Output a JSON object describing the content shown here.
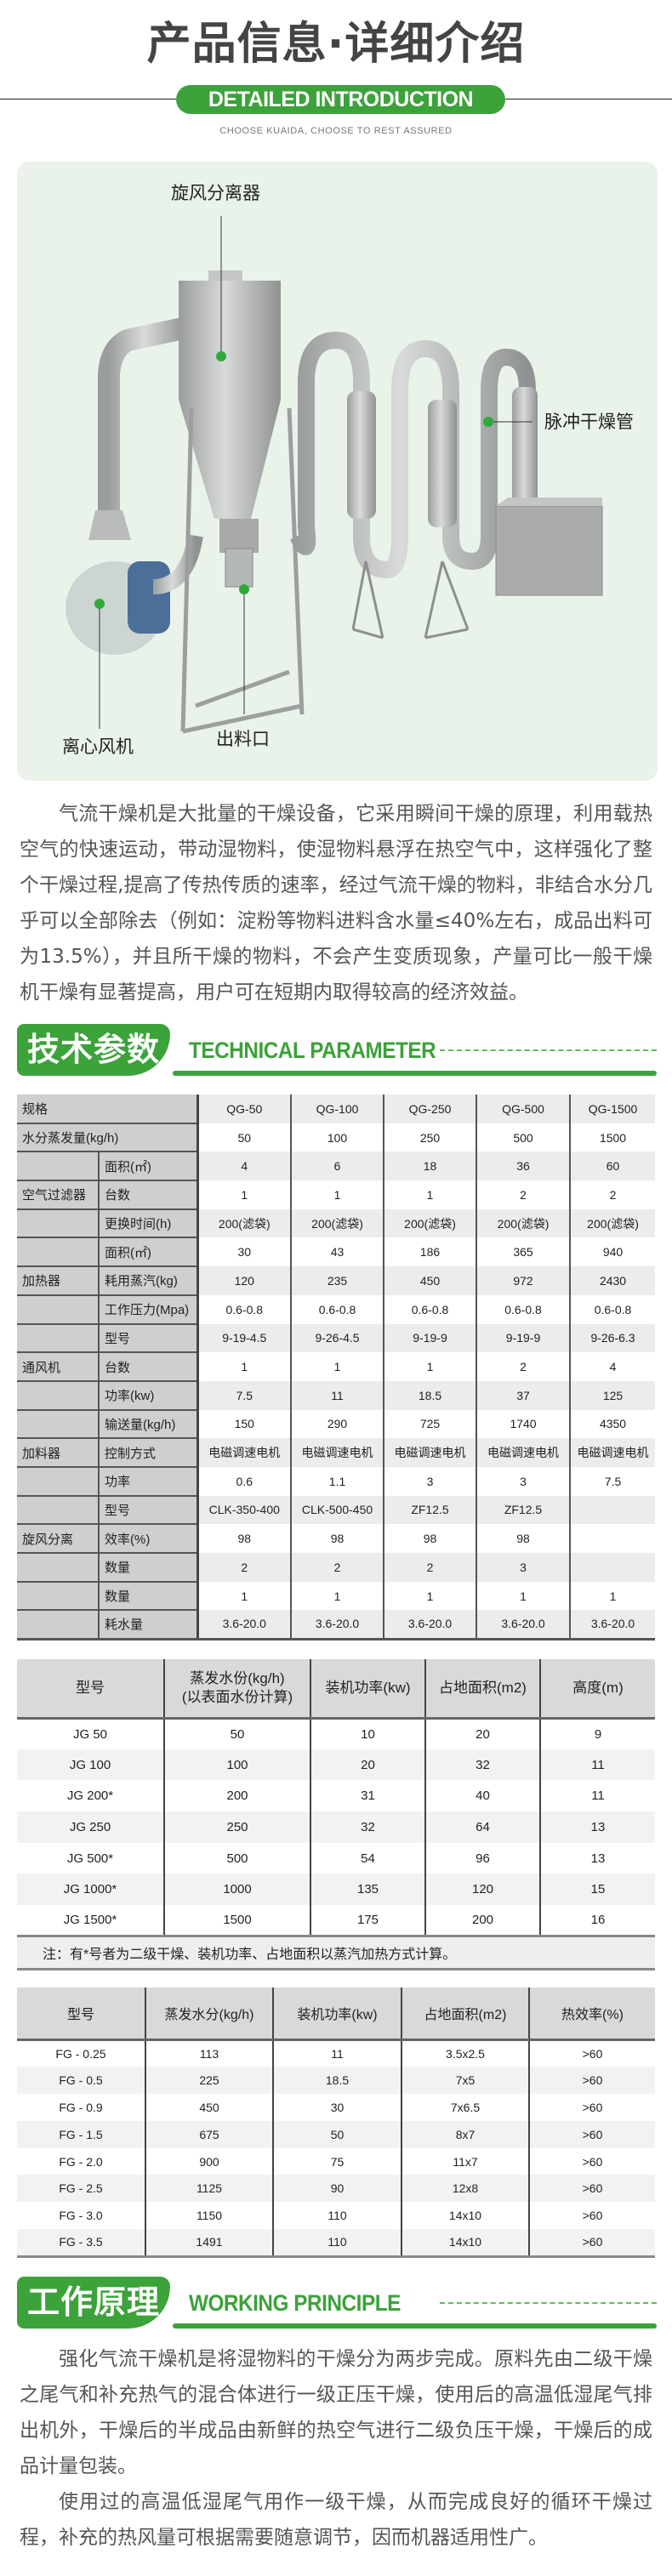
{
  "header": {
    "title": "产品信息·详细介绍",
    "badge": "DETAILED INTRODUCTION",
    "subtitle": "CHOOSE KUAIDA, CHOOSE TO REST ASSURED",
    "accent_color": "#3ca23a"
  },
  "product_image": {
    "callouts": {
      "cyclone": "旋风分离器",
      "pulse_tube": "脉冲干燥管",
      "fan": "离心风机",
      "outlet": "出料口"
    }
  },
  "intro": {
    "paragraph": "气流干燥机是大批量的干燥设备，它采用瞬间干燥的原理，利用载热空气的快速运动，带动湿物料，使湿物料悬浮在热空气中，这样强化了整个干燥过程,提高了传热传质的速率，经过气流干燥的物料，非结合水分几乎可以全部除去（例如：淀粉等物料进料含水量≤40%左右，成品出料可为13.5%），并且所干燥的物料，不会产生变质现象，产量可比一般干燥机干燥有显著提高，用户可在短期内取得较高的经济效益。"
  },
  "tech_section": {
    "title_cn": "技术参数",
    "title_en": "TECHNICAL PARAMETER"
  },
  "table_qg": {
    "header": {
      "label": "规格",
      "models": [
        "QG-50",
        "QG-100",
        "QG-250",
        "QG-500",
        "QG-1500"
      ]
    },
    "rows": [
      {
        "group": "",
        "label": "水分蒸发量(kg/h)",
        "span": true,
        "values": [
          "50",
          "100",
          "250",
          "500",
          "1500"
        ]
      },
      {
        "group": "",
        "label": "面积(㎡)",
        "values": [
          "4",
          "6",
          "18",
          "36",
          "60"
        ]
      },
      {
        "group": "空气过滤器",
        "label": "台数",
        "values": [
          "1",
          "1",
          "1",
          "2",
          "2"
        ]
      },
      {
        "group": "",
        "label": "更换时间(h)",
        "values": [
          "200(滤袋)",
          "200(滤袋)",
          "200(滤袋)",
          "200(滤袋)",
          "200(滤袋)"
        ]
      },
      {
        "group": "",
        "label": "面积(㎡)",
        "values": [
          "30",
          "43",
          "186",
          "365",
          "940"
        ]
      },
      {
        "group": "加热器",
        "label": "耗用蒸汽(kg)",
        "values": [
          "120",
          "235",
          "450",
          "972",
          "2430"
        ]
      },
      {
        "group": "",
        "label": "工作压力(Mpa)",
        "values": [
          "0.6-0.8",
          "0.6-0.8",
          "0.6-0.8",
          "0.6-0.8",
          "0.6-0.8"
        ]
      },
      {
        "group": "",
        "label": "型号",
        "values": [
          "9-19-4.5",
          "9-26-4.5",
          "9-19-9",
          "9-19-9",
          "9-26-6.3"
        ]
      },
      {
        "group": "通风机",
        "label": "台数",
        "values": [
          "1",
          "1",
          "1",
          "2",
          "4"
        ]
      },
      {
        "group": "",
        "label": "功率(kw)",
        "values": [
          "7.5",
          "11",
          "18.5",
          "37",
          "125"
        ]
      },
      {
        "group": "",
        "label": "输送量(kg/h)",
        "values": [
          "150",
          "290",
          "725",
          "1740",
          "4350"
        ]
      },
      {
        "group": "加料器",
        "label": "控制方式",
        "values": [
          "电磁调速电机",
          "电磁调速电机",
          "电磁调速电机",
          "电磁调速电机",
          "电磁调速电机"
        ]
      },
      {
        "group": "",
        "label": "功率",
        "values": [
          "0.6",
          "1.1",
          "3",
          "3",
          "7.5"
        ]
      },
      {
        "group": "",
        "label": "型号",
        "values": [
          "CLK-350-400",
          "CLK-500-450",
          "ZF12.5",
          "ZF12.5",
          ""
        ]
      },
      {
        "group": "旋风分离",
        "label": "效率(%)",
        "values": [
          "98",
          "98",
          "98",
          "98",
          ""
        ]
      },
      {
        "group": "",
        "label": "数量",
        "values": [
          "2",
          "2",
          "2",
          "3",
          ""
        ]
      },
      {
        "group": "",
        "label": "数量",
        "values": [
          "1",
          "1",
          "1",
          "1",
          "1"
        ]
      },
      {
        "group": "",
        "label": "耗水量",
        "values": [
          "3.6-20.0",
          "3.6-20.0",
          "3.6-20.0",
          "3.6-20.0",
          "3.6-20.0"
        ]
      }
    ]
  },
  "table_jg": {
    "columns": [
      "型号",
      "蒸发水份(kg/h)\n(以表面水份计算)",
      "装机功率(kw)",
      "占地面积(m2)",
      "高度(m)"
    ],
    "rows": [
      [
        "JG 50",
        "50",
        "10",
        "20",
        "9"
      ],
      [
        "JG 100",
        "100",
        "20",
        "32",
        "11"
      ],
      [
        "JG 200*",
        "200",
        "31",
        "40",
        "11"
      ],
      [
        "JG 250",
        "250",
        "32",
        "64",
        "13"
      ],
      [
        "JG 500*",
        "500",
        "54",
        "96",
        "13"
      ],
      [
        "JG 1000*",
        "1000",
        "135",
        "120",
        "15"
      ],
      [
        "JG 1500*",
        "1500",
        "175",
        "200",
        "16"
      ]
    ],
    "note": "注：有*号者为二级干燥、装机功率、占地面积以蒸汽加热方式计算。"
  },
  "table_fg": {
    "columns": [
      "型号",
      "蒸发水分(kg/h)",
      "装机功率(kw)",
      "占地面积(m2)",
      "热效率(%)"
    ],
    "rows": [
      [
        "FG - 0.25",
        "113",
        "11",
        "3.5x2.5",
        ">60"
      ],
      [
        "FG - 0.5",
        "225",
        "18.5",
        "7x5",
        ">60"
      ],
      [
        "FG - 0.9",
        "450",
        "30",
        "7x6.5",
        ">60"
      ],
      [
        "FG - 1.5",
        "675",
        "50",
        "8x7",
        ">60"
      ],
      [
        "FG - 2.0",
        "900",
        "75",
        "11x7",
        ">60"
      ],
      [
        "FG - 2.5",
        "1125",
        "90",
        "12x8",
        ">60"
      ],
      [
        "FG - 3.0",
        "1150",
        "110",
        "14x10",
        ">60"
      ],
      [
        "FG - 3.5",
        "1491",
        "110",
        "14x10",
        ">60"
      ]
    ]
  },
  "principle_section": {
    "title_cn": "工作原理",
    "title_en": "WORKING PRINCIPLE",
    "paragraphs": [
      "强化气流干燥机是将湿物料的干燥分为两步完成。原料先由二级干燥之尾气和补充热气的混合体进行一级正压干燥，使用后的高温低湿尾气排出机外，干燥后的半成品由新鲜的热空气进行二级负压干燥，干燥后的成品计量包装。",
      "使用过的高温低湿尾气用作一级干燥，从而完成良好的循环干燥过程，补充的热风量可根据需要随意调节，因而机器适用性广。"
    ]
  }
}
